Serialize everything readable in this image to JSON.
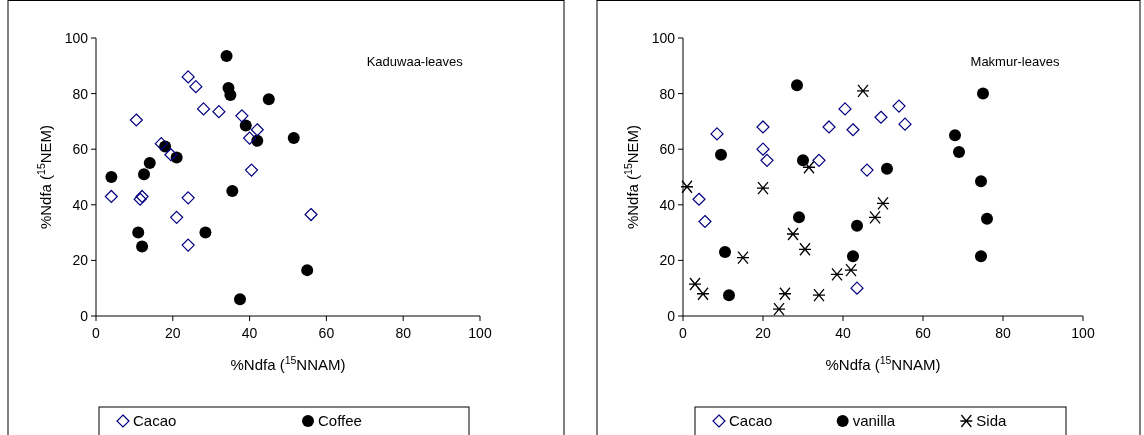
{
  "chart_data": [
    {
      "type": "scatter",
      "title": "Kaduwaa-leaves",
      "xlabel": "%Ndfa ($^{15}$NNAM)",
      "ylabel": "%Ndfa ($^{15}$NEM)",
      "xlim": [
        0,
        100
      ],
      "ylim": [
        0,
        100
      ],
      "xticks": [
        0,
        20,
        40,
        60,
        80,
        100
      ],
      "yticks": [
        0,
        20,
        40,
        60,
        80,
        100
      ],
      "legend": "bottom",
      "series": [
        {
          "name": "Cacao",
          "color": "#000080",
          "marker": "diamond",
          "x": [
            4,
            10.5,
            11.5,
            12,
            17,
            19.5,
            21,
            24,
            24,
            24,
            26,
            28,
            32,
            38,
            40,
            40.5,
            42,
            56
          ],
          "values": [
            43,
            70.5,
            42,
            43,
            62,
            58,
            35.5,
            86,
            42.5,
            25.5,
            82.5,
            74.5,
            73.5,
            72,
            64,
            52.5,
            67,
            36.5
          ]
        },
        {
          "name": "Coffee",
          "color": "#000000",
          "marker": "circle",
          "x": [
            4,
            11,
            12,
            12.5,
            14,
            18,
            21,
            28.5,
            34,
            34.5,
            35,
            35.5,
            37.5,
            39,
            42,
            45,
            51.5,
            55
          ],
          "values": [
            50,
            30,
            25,
            51,
            55,
            61,
            57,
            30,
            93.5,
            82,
            79.5,
            45,
            6,
            68.5,
            63,
            78,
            64,
            16.5
          ]
        }
      ]
    },
    {
      "type": "scatter",
      "title": "Makmur-leaves",
      "xlabel": "%Ndfa ($^{15}$NNAM)",
      "ylabel": "%Ndfa ($^{15}$NEM)",
      "xlim": [
        0,
        100
      ],
      "ylim": [
        0,
        100
      ],
      "xticks": [
        0,
        20,
        40,
        60,
        80,
        100
      ],
      "yticks": [
        0,
        20,
        40,
        60,
        80,
        100
      ],
      "legend": "bottom",
      "series": [
        {
          "name": "Cacao",
          "color": "#000080",
          "marker": "diamond",
          "x": [
            4,
            5.5,
            8.5,
            20,
            20,
            21,
            34,
            36.5,
            40.5,
            42.5,
            49.5,
            54,
            55.5,
            46,
            43.5
          ],
          "values": [
            42,
            34,
            65.5,
            68,
            60,
            56,
            56,
            68,
            74.5,
            67,
            71.5,
            75.5,
            69,
            52.5,
            10
          ]
        },
        {
          "name": "vanilla",
          "color": "#000000",
          "marker": "circle",
          "x": [
            9.5,
            10.5,
            11.5,
            28.5,
            30,
            29,
            43.5,
            42.5,
            51,
            68,
            69,
            74.5,
            75,
            76,
            74.5
          ],
          "values": [
            58,
            23,
            7.5,
            83,
            56,
            35.5,
            32.5,
            21.5,
            53,
            65,
            59,
            48.5,
            80,
            35,
            21.5
          ]
        },
        {
          "name": "Sida",
          "color": "#000000",
          "marker": "cross",
          "x": [
            1,
            3,
            5,
            15,
            20,
            24,
            25.5,
            27.5,
            30.5,
            31.5,
            34,
            38.5,
            42,
            45,
            48,
            50
          ],
          "values": [
            46.5,
            11.5,
            8,
            21,
            46,
            2.5,
            8,
            29.5,
            24,
            53.5,
            7.5,
            15,
            16.5,
            81,
            35.5,
            40.5
          ]
        }
      ]
    }
  ]
}
